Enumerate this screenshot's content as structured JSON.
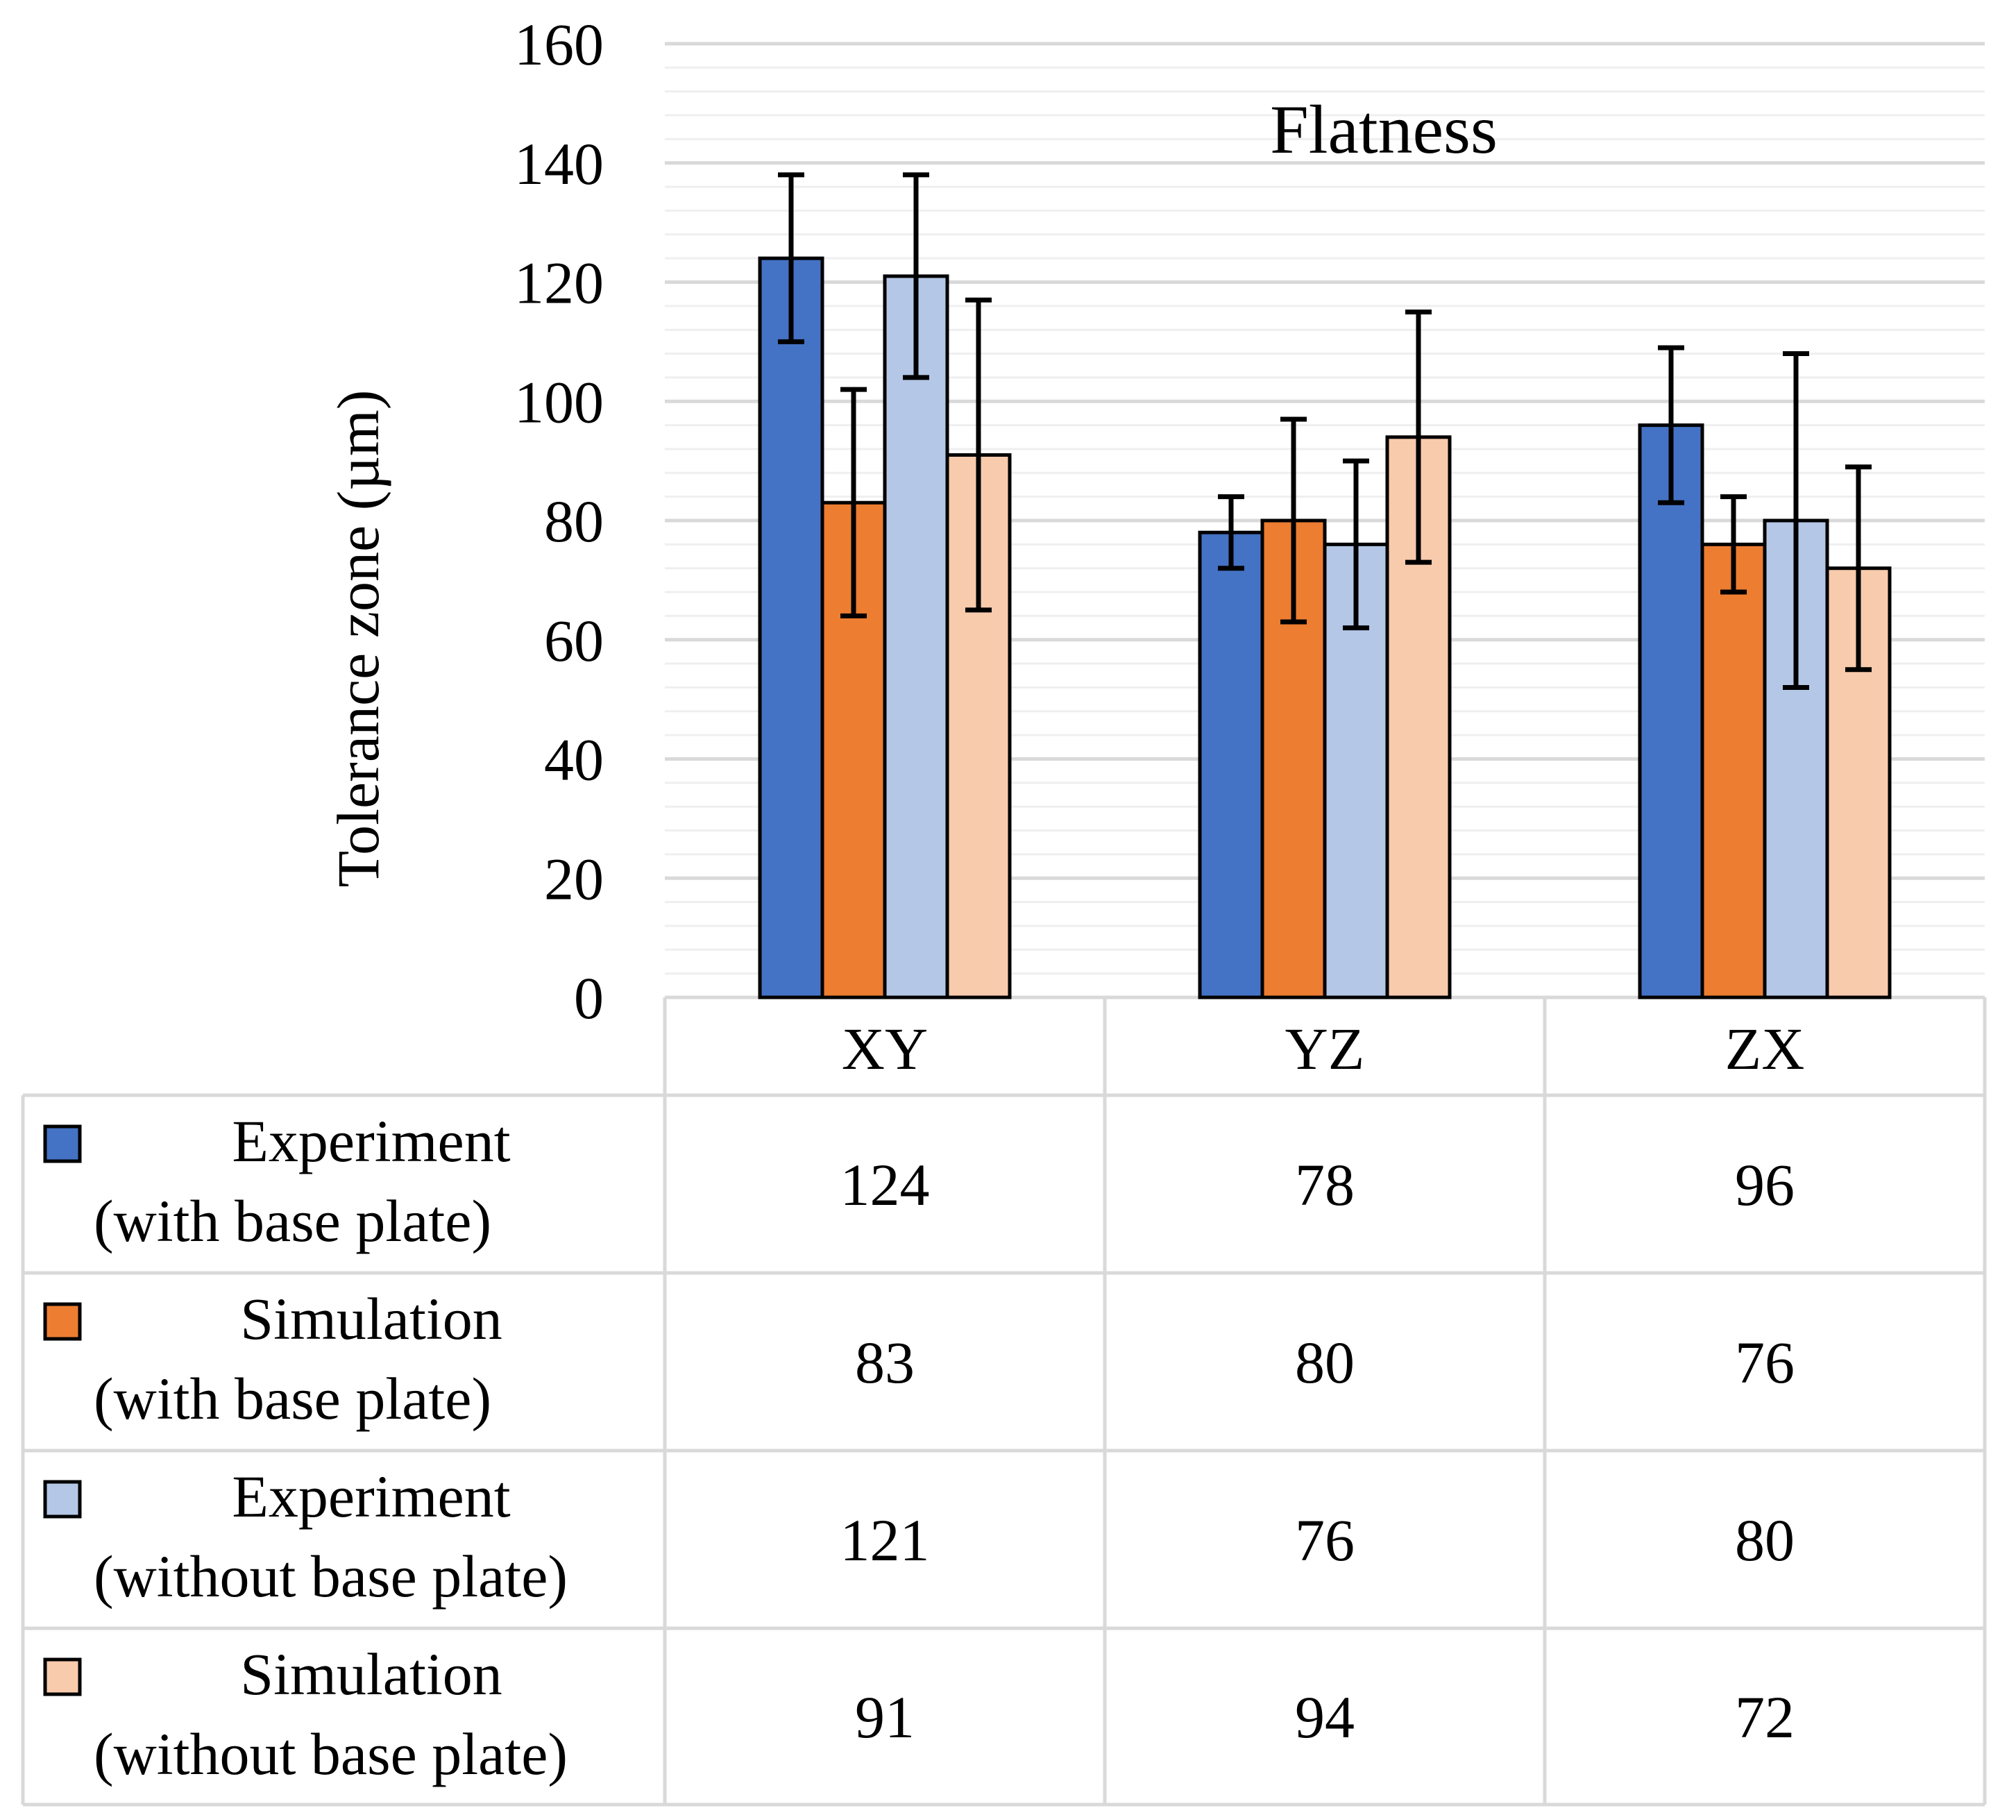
{
  "chart_data": {
    "type": "bar",
    "title": "Flatness",
    "xlabel": "",
    "ylabel": "Tolerance zone (µm)",
    "ylim": [
      0,
      160
    ],
    "yticks": [
      "0",
      "20",
      "40",
      "60",
      "80",
      "100",
      "120",
      "140",
      "160"
    ],
    "categories": [
      "XY",
      "YZ",
      "ZX"
    ],
    "grid": true,
    "legend": "data-table",
    "series": [
      {
        "name_line1": "Experiment",
        "name_line2": "(with base plate)",
        "color": "#4472C4",
        "values": [
          124,
          78,
          96
        ],
        "labels": [
          "124",
          "78",
          "96"
        ],
        "err_low": [
          110,
          72,
          83
        ],
        "err_high": [
          138,
          84,
          109
        ]
      },
      {
        "name_line1": "Simulation",
        "name_line2": "(with base plate)",
        "color": "#ED7D31",
        "values": [
          83,
          80,
          76
        ],
        "labels": [
          "83",
          "80",
          "76"
        ],
        "err_low": [
          64,
          63,
          68
        ],
        "err_high": [
          102,
          97,
          84
        ]
      },
      {
        "name_line1": "Experiment",
        "name_line2": "(without base plate)",
        "color": "#B4C7E7",
        "values": [
          121,
          76,
          80
        ],
        "labels": [
          "121",
          "76",
          "80"
        ],
        "err_low": [
          104,
          62,
          52
        ],
        "err_high": [
          138,
          90,
          108
        ]
      },
      {
        "name_line1": "Simulation",
        "name_line2": "(without base plate)",
        "color": "#F8CBAD",
        "values": [
          91,
          94,
          72
        ],
        "labels": [
          "91",
          "94",
          "72"
        ],
        "err_low": [
          65,
          73,
          55
        ],
        "err_high": [
          117,
          115,
          89
        ]
      }
    ]
  }
}
